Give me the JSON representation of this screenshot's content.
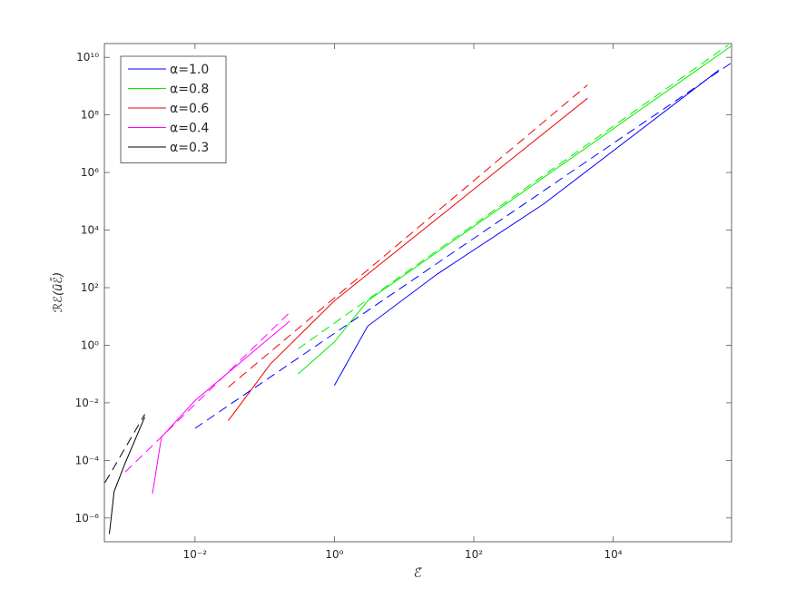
{
  "chart_data": {
    "type": "line",
    "xlabel": "ℰ̄",
    "ylabel": "ℛℰ(ũℰ̄)",
    "xscale": "log",
    "yscale": "log",
    "xlim": [
      0.0005,
      500000
    ],
    "ylim": [
      1.5e-07,
      30000000000.0
    ],
    "xticks": [
      {
        "value": 0.01,
        "label": "10⁻²"
      },
      {
        "value": 1,
        "label": "10⁰"
      },
      {
        "value": 100,
        "label": "10²"
      },
      {
        "value": 10000,
        "label": "10⁴"
      }
    ],
    "yticks": [
      {
        "value": 1e-06,
        "label": "10⁻⁶"
      },
      {
        "value": 0.0001,
        "label": "10⁻⁴"
      },
      {
        "value": 0.01,
        "label": "10⁻²"
      },
      {
        "value": 1,
        "label": "10⁰"
      },
      {
        "value": 100,
        "label": "10²"
      },
      {
        "value": 10000,
        "label": "10⁴"
      },
      {
        "value": 1000000,
        "label": "10⁶"
      },
      {
        "value": 100000000,
        "label": "10⁸"
      },
      {
        "value": 10000000000,
        "label": "10¹⁰"
      }
    ],
    "legend": "upper left",
    "series": [
      {
        "name": "α=1.0",
        "color": "#0000ff",
        "style": "solid",
        "x": [
          1,
          3,
          30,
          1000,
          330000
        ],
        "values": [
          0.04,
          4.6,
          300,
          80000,
          3600000000
        ]
      },
      {
        "name": "α=0.8",
        "color": "#00ee00",
        "style": "solid",
        "x": [
          0.3,
          1,
          3,
          500000
        ],
        "values": [
          0.1,
          1.3,
          35,
          25000000000
        ]
      },
      {
        "name": "α=0.6",
        "color": "#ee0000",
        "style": "solid",
        "x": [
          0.03,
          0.12,
          1,
          4300
        ],
        "values": [
          0.0024,
          0.22,
          35,
          380000000
        ]
      },
      {
        "name": "α=0.4",
        "color": "#ff00ff",
        "style": "solid",
        "x": [
          0.00245,
          0.0033,
          0.01,
          0.23
        ],
        "values": [
          7e-06,
          0.00065,
          0.012,
          7
        ]
      },
      {
        "name": "α=0.3",
        "color": "#000000",
        "style": "solid",
        "x": [
          0.00059,
          0.00069,
          0.00098,
          0.0019
        ],
        "values": [
          2.8e-07,
          8.3e-06,
          7.4e-05,
          0.0032
        ]
      },
      {
        "color": "#0000ff",
        "style": "dashed",
        "x": [
          0.01,
          500000
        ],
        "values": [
          0.0013,
          6500000000
        ]
      },
      {
        "color": "#00ee00",
        "style": "dashed",
        "x": [
          0.3,
          450000
        ],
        "values": [
          0.75,
          27000000000
        ]
      },
      {
        "color": "#ee0000",
        "style": "dashed",
        "x": [
          0.03,
          4300
        ],
        "values": [
          0.035,
          1100000000
        ]
      },
      {
        "color": "#ff00ff",
        "style": "dashed",
        "x": [
          0.001,
          0.23
        ],
        "values": [
          4e-05,
          14
        ]
      },
      {
        "color": "#000000",
        "style": "dashed",
        "x": [
          0.00051,
          0.0019
        ],
        "values": [
          1.7e-05,
          0.004
        ]
      }
    ]
  }
}
